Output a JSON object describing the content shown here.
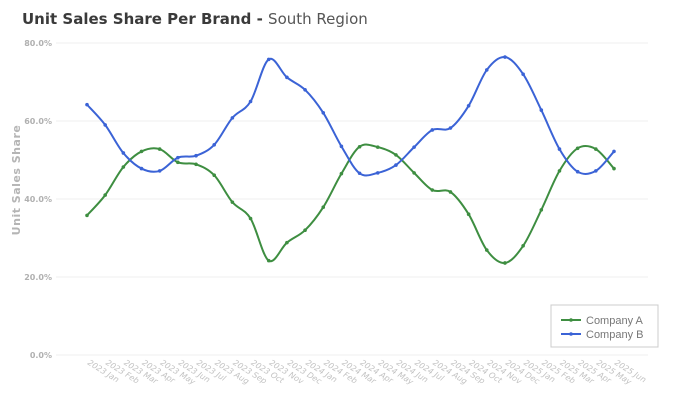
{
  "chart_data": {
    "type": "line",
    "title": "Unit Sales Share Per Brand",
    "title_separator": "-",
    "subtitle": "South Region",
    "xlabel": "",
    "ylabel": "Unit Sales Share",
    "ylim": [
      0,
      80
    ],
    "y_ticks": [
      "0.0%",
      "20.0%",
      "40.0%",
      "60.0%",
      "80.0%"
    ],
    "y_tick_values": [
      0,
      20,
      40,
      60,
      80
    ],
    "grid": true,
    "legend_position": "bottom-right",
    "categories": [
      "2023 Jan",
      "2023 Feb",
      "2023 Mar",
      "2023 Apr",
      "2023 May",
      "2023 Jun",
      "2023 Jul",
      "2023 Aug",
      "2023 Sep",
      "2023 Oct",
      "2023 Nov",
      "2023 Dec",
      "2024 Jan",
      "2024 Feb",
      "2024 Mar",
      "2024 Apr",
      "2024 May",
      "2024 Jun",
      "2024 Jul",
      "2024 Aug",
      "2024 Sep",
      "2024 Oct",
      "2024 Nov",
      "2024 Dec",
      "2025 Jan",
      "2025 Feb",
      "2025 Mar",
      "2025 Apr",
      "2025 May",
      "2025 Jun"
    ],
    "series": [
      {
        "name": "Company A",
        "color": "#3e8e41",
        "values": [
          35.8,
          41.0,
          48.2,
          52.2,
          52.8,
          49.4,
          48.9,
          46.1,
          39.2,
          35.0,
          24.2,
          28.8,
          32.0,
          37.9,
          46.5,
          53.4,
          53.3,
          51.3,
          46.7,
          42.3,
          41.8,
          36.1,
          26.9,
          23.6,
          28.0,
          37.2,
          47.2,
          53.0,
          52.8,
          47.8
        ]
      },
      {
        "name": "Company B",
        "color": "#3b63d6",
        "values": [
          64.2,
          59.0,
          51.8,
          47.8,
          47.2,
          50.6,
          51.1,
          53.9,
          60.8,
          65.0,
          75.8,
          71.2,
          68.0,
          62.1,
          53.5,
          46.6,
          46.7,
          48.7,
          53.3,
          57.7,
          58.2,
          63.9,
          73.1,
          76.4,
          72.0,
          62.8,
          52.8,
          47.0,
          47.2,
          52.2
        ]
      }
    ]
  }
}
